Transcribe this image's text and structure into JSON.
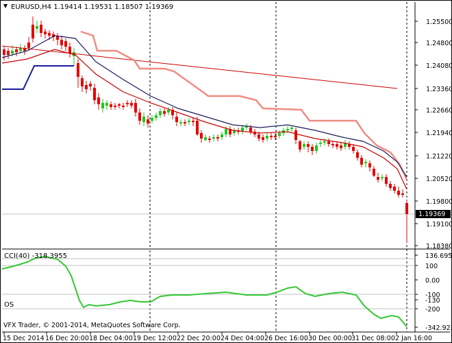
{
  "main_chart": {
    "symbol_timeframe": "EURUSD,H4",
    "ohlc": "1.19414 1.19531 1.18507 1.19369",
    "price_axis_labels": [
      "1.25500",
      "1.24800",
      "1.24080",
      "1.23360",
      "1.22660",
      "1.21940",
      "1.21220",
      "1.20520",
      "1.19800",
      "1.19100",
      "1.18380"
    ],
    "current_price_label": "1.19369",
    "colors": {
      "bull": "#1ec81e",
      "bear": "#e60000",
      "ma_slow": "#c80000",
      "ma_fast": "#1a1a5a",
      "trend": "#c80000",
      "envelope": "#f08c82",
      "step_line": "#1a1a9a",
      "current_price_bg": "#000000"
    }
  },
  "indicator": {
    "title": "CCI(40) -318.3955",
    "axis_labels": [
      "136.6952",
      "100",
      "0.00",
      "-100",
      "-130",
      "-200",
      "-342.9237"
    ],
    "os_label": "OS",
    "line_color": "#32c832"
  },
  "footer": {
    "copyright": "VFX Trader, © 2001-2014, MetaQuotes Software Corp."
  },
  "time_axis_labels": [
    "15 Dec 2014",
    "16 Dec 20:00",
    "18 Dec 04:00",
    "19 Dec 12:00",
    "22 Dec 20:00",
    "24 Dec 04:00",
    "26 Dec 16:00",
    "30 Dec 00:00",
    "31 Dec 08:00",
    "2 Jan 16:00"
  ]
}
